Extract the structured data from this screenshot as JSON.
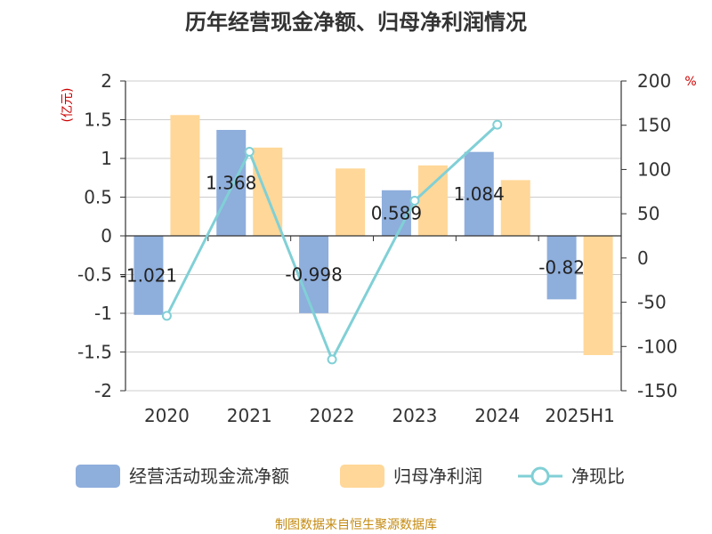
{
  "chart_data": {
    "type": "bar",
    "title": "历年经营现金净额、归母净利润情况",
    "categories": [
      "2020",
      "2021",
      "2022",
      "2023",
      "2024",
      "2025H1"
    ],
    "series": [
      {
        "name": "经营活动现金流净额",
        "type": "bar",
        "axis": "left",
        "color": "#8eaedc",
        "values": [
          -1.021,
          1.368,
          -0.998,
          0.589,
          1.084,
          -0.82
        ]
      },
      {
        "name": "归母净利润",
        "type": "bar",
        "axis": "left",
        "color": "#ffd798",
        "values": [
          1.56,
          1.14,
          0.87,
          0.91,
          0.72,
          -1.54
        ]
      },
      {
        "name": "净现比",
        "type": "line",
        "axis": "right",
        "color": "#80d0d6",
        "values": [
          -65.4,
          120.0,
          -114.7,
          64.7,
          150.6,
          null
        ]
      }
    ],
    "data_labels": [
      "-1.021",
      "1.368",
      "-0.998",
      "0.589",
      "1.084",
      "-0.82"
    ],
    "left_axis": {
      "unit": "(亿元)",
      "ylim": [
        -2,
        2
      ],
      "ticks": [
        2,
        1.5,
        1,
        0.5,
        0,
        -0.5,
        -1,
        -1.5,
        -2
      ],
      "tick_labels": [
        "2",
        "1.5",
        "1",
        "0.5",
        "0",
        "-0.5",
        "-1",
        "-1.5",
        "-2"
      ]
    },
    "right_axis": {
      "unit": "%",
      "ylim": [
        -150,
        200
      ],
      "ticks": [
        200,
        150,
        100,
        50,
        0,
        -50,
        -100,
        -150
      ],
      "tick_labels": [
        "200",
        "150",
        "100",
        "50",
        "0",
        "-50",
        "-100",
        "-150"
      ]
    },
    "grid": true,
    "legend_position": "bottom"
  },
  "source_note": "制图数据来自恒生聚源数据库"
}
